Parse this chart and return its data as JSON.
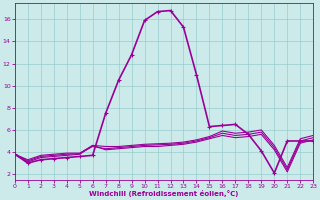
{
  "xlabel": "Windchill (Refroidissement éolien,°C)",
  "xlim": [
    0,
    23
  ],
  "ylim": [
    1.5,
    17.5
  ],
  "xticks": [
    0,
    1,
    2,
    3,
    4,
    5,
    6,
    7,
    8,
    9,
    10,
    11,
    12,
    13,
    14,
    15,
    16,
    17,
    18,
    19,
    20,
    21,
    22,
    23
  ],
  "yticks": [
    2,
    4,
    6,
    8,
    10,
    12,
    14,
    16
  ],
  "background_color": "#cceaea",
  "line_color": "#990099",
  "grid_color": "#99cccc",
  "series": {
    "main": {
      "x": [
        0,
        1,
        2,
        3,
        4,
        5,
        6,
        7,
        8,
        9,
        10,
        11,
        12,
        13,
        14,
        15,
        16,
        17,
        18,
        19,
        20,
        21,
        22,
        23
      ],
      "y": [
        3.8,
        3.0,
        3.3,
        3.4,
        3.5,
        3.6,
        3.7,
        7.5,
        10.5,
        12.8,
        15.9,
        16.7,
        16.8,
        15.3,
        11.0,
        6.3,
        6.4,
        6.5,
        5.6,
        4.1,
        2.1,
        5.0,
        5.0,
        5.0
      ]
    },
    "line_a": {
      "x": [
        0,
        1,
        2,
        3,
        4,
        5,
        6,
        7,
        8,
        9,
        10,
        11,
        12,
        13,
        14,
        15,
        16,
        17,
        18,
        19,
        20,
        21,
        22,
        23
      ],
      "y": [
        3.8,
        3.1,
        3.5,
        3.6,
        3.7,
        3.8,
        4.6,
        4.2,
        4.3,
        4.4,
        4.5,
        4.5,
        4.6,
        4.7,
        4.9,
        5.2,
        5.5,
        5.3,
        5.4,
        5.6,
        4.2,
        2.2,
        4.8,
        5.1
      ]
    },
    "line_b": {
      "x": [
        0,
        1,
        2,
        3,
        4,
        5,
        6,
        7,
        8,
        9,
        10,
        11,
        12,
        13,
        14,
        15,
        16,
        17,
        18,
        19,
        20,
        21,
        22,
        23
      ],
      "y": [
        3.8,
        3.2,
        3.6,
        3.7,
        3.8,
        3.85,
        4.5,
        4.3,
        4.4,
        4.5,
        4.6,
        4.65,
        4.7,
        4.8,
        5.0,
        5.3,
        5.7,
        5.5,
        5.6,
        5.8,
        4.4,
        2.4,
        5.0,
        5.3
      ]
    },
    "line_c": {
      "x": [
        0,
        1,
        2,
        3,
        4,
        5,
        6,
        7,
        8,
        9,
        10,
        11,
        12,
        13,
        14,
        15,
        16,
        17,
        18,
        19,
        20,
        21,
        22,
        23
      ],
      "y": [
        3.8,
        3.3,
        3.7,
        3.8,
        3.9,
        3.9,
        4.6,
        4.5,
        4.5,
        4.6,
        4.7,
        4.75,
        4.8,
        4.9,
        5.1,
        5.4,
        5.9,
        5.7,
        5.8,
        6.0,
        4.6,
        2.6,
        5.2,
        5.5
      ]
    }
  }
}
